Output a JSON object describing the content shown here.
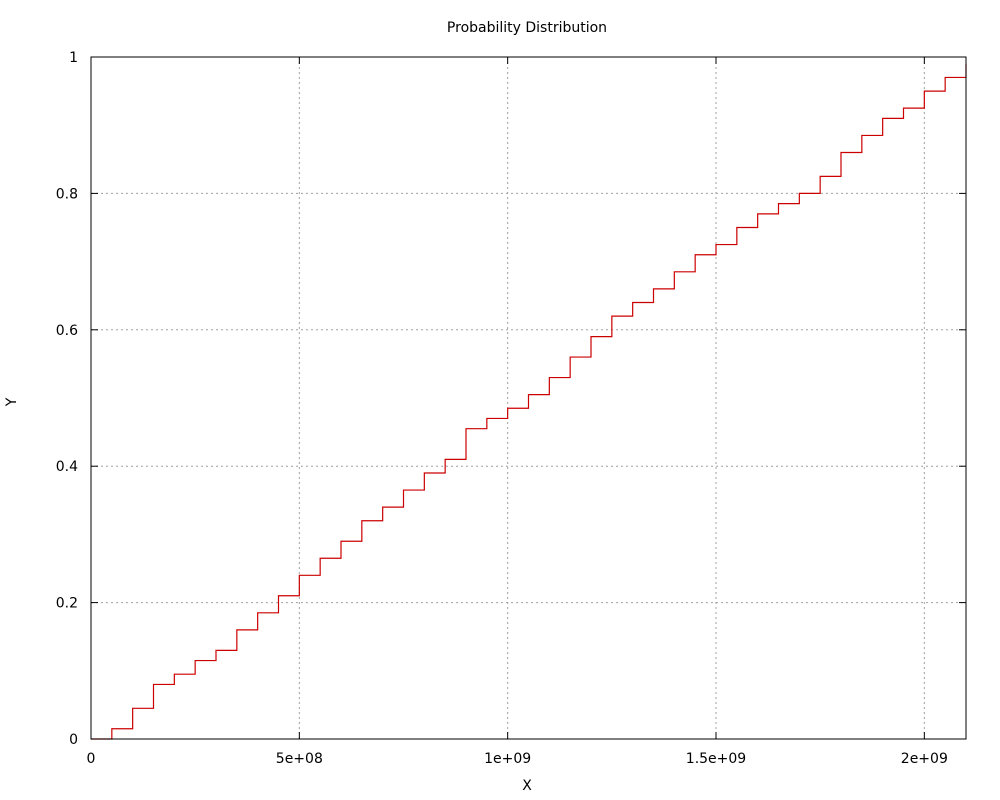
{
  "chart_data": {
    "type": "line",
    "title": "Probability Distribution",
    "xlabel": "X",
    "ylabel": "Y",
    "xlim": [
      0,
      2100000000
    ],
    "ylim": [
      0,
      1
    ],
    "x_ticks": [
      {
        "value": 0,
        "label": "0"
      },
      {
        "value": 500000000,
        "label": "5e+08"
      },
      {
        "value": 1000000000,
        "label": "1e+09"
      },
      {
        "value": 1500000000,
        "label": "1.5e+09"
      },
      {
        "value": 2000000000,
        "label": "2e+09"
      }
    ],
    "y_ticks": [
      {
        "value": 0,
        "label": "0"
      },
      {
        "value": 0.2,
        "label": "0.2"
      },
      {
        "value": 0.4,
        "label": "0.4"
      },
      {
        "value": 0.6,
        "label": "0.6"
      },
      {
        "value": 0.8,
        "label": "0.8"
      },
      {
        "value": 1,
        "label": "1"
      }
    ],
    "grid": true,
    "series_color": "#cc0000",
    "series": [
      {
        "x": [
          0,
          50000000,
          100000000,
          150000000,
          200000000,
          250000000,
          300000000,
          350000000,
          400000000,
          450000000,
          500000000,
          550000000,
          600000000,
          650000000,
          700000000,
          750000000,
          800000000,
          850000000,
          900000000,
          950000000,
          1000000000,
          1050000000,
          1100000000,
          1150000000,
          1200000000,
          1250000000,
          1300000000,
          1350000000,
          1400000000,
          1450000000,
          1500000000,
          1550000000,
          1600000000,
          1650000000,
          1700000000,
          1750000000,
          1800000000,
          1850000000,
          1900000000,
          1950000000,
          2000000000,
          2050000000,
          2100000000
        ],
        "y": [
          0,
          0.015,
          0.045,
          0.08,
          0.095,
          0.115,
          0.13,
          0.16,
          0.185,
          0.21,
          0.24,
          0.265,
          0.29,
          0.32,
          0.34,
          0.365,
          0.39,
          0.41,
          0.455,
          0.47,
          0.485,
          0.505,
          0.53,
          0.56,
          0.59,
          0.62,
          0.64,
          0.66,
          0.685,
          0.71,
          0.725,
          0.75,
          0.77,
          0.785,
          0.8,
          0.825,
          0.86,
          0.885,
          0.91,
          0.925,
          0.95,
          0.97,
          0.99
        ]
      }
    ]
  }
}
